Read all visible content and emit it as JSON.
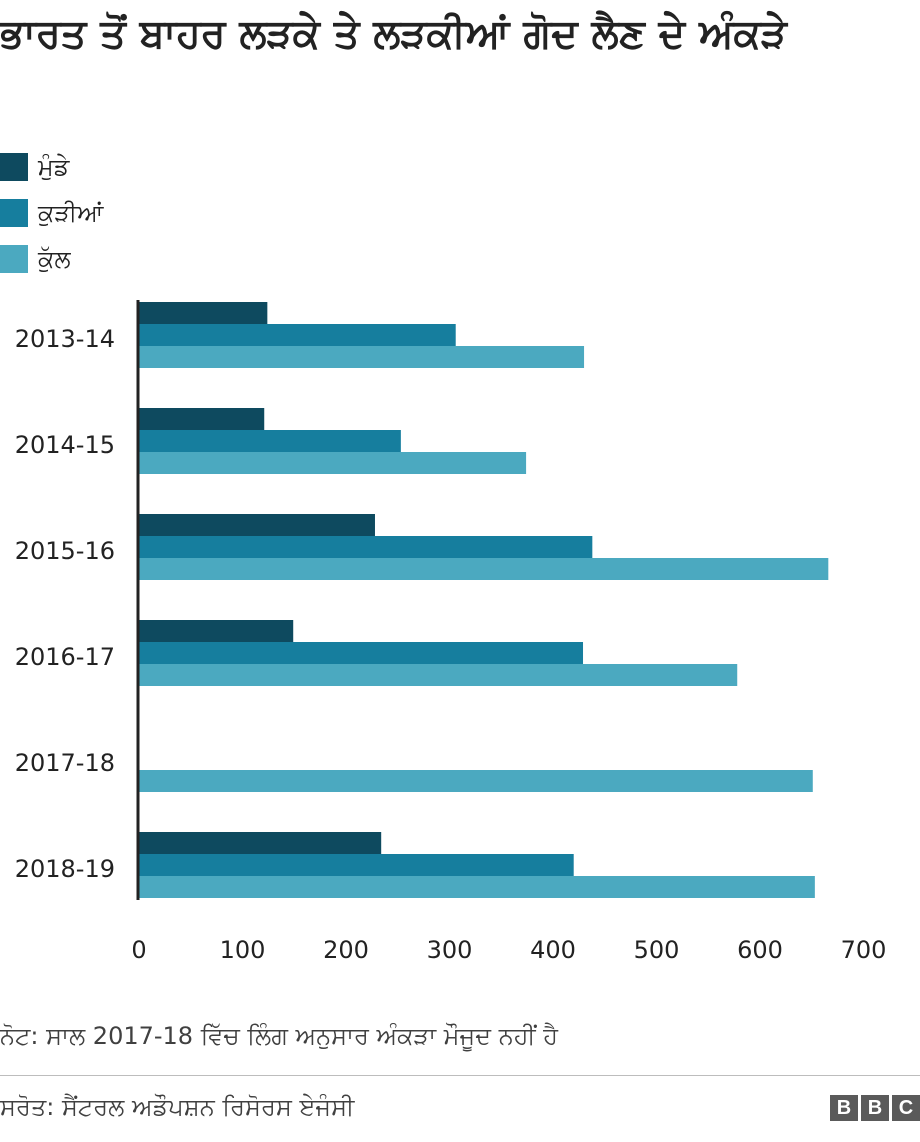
{
  "title": "ਭਾਰਤ ਤੋਂ ਬਾਹਰ ਲੜਕੇ ਤੇ ਲੜਕੀਆਂ ਗੋਦ ਲੈਣ ਦੇ ਅੰਕੜੇ",
  "note": "ਨੋਟ: ਸਾਲ 2017-18 ਵਿੱਚ ਲਿੰਗ ਅਨੁਸਾਰ ਅੰਕੜਾ ਮੌਜੂਦ ਨਹੀਂ ਹੈ",
  "source": "ਸਰੋਤ: ਸੈਂਟਰਲ ਅਡੌਪਸ਼ਨ ਰਿਸੋਰਸ ਏਜੰਸੀ",
  "logo": {
    "letters": [
      "B",
      "B",
      "C"
    ]
  },
  "colors": {
    "boys": "#0e4a5f",
    "girls": "#167e9e",
    "total": "#4ba9c0",
    "axis": "#222222",
    "text": "#222222"
  },
  "chart_data": {
    "type": "bar",
    "orientation": "horizontal",
    "title": "ਭਾਰਤ ਤੋਂ ਬਾਹਰ ਲੜਕੇ ਤੇ ਲੜਕੀਆਂ ਗੋਦ ਲੈਣ ਦੇ ਅੰਕੜੇ",
    "categories": [
      "2013-14",
      "2014-15",
      "2015-16",
      "2016-17",
      "2017-18",
      "2018-19"
    ],
    "series": [
      {
        "name": "ਮੁੰਡੇ",
        "color": "#0e4a5f",
        "values": [
          124,
          121,
          228,
          149,
          null,
          234
        ]
      },
      {
        "name": "ਕੁੜੀਆਂ",
        "color": "#167e9e",
        "values": [
          306,
          253,
          438,
          429,
          null,
          420
        ]
      },
      {
        "name": "ਕੁੱਲ",
        "color": "#4ba9c0",
        "values": [
          430,
          374,
          666,
          578,
          651,
          653
        ]
      }
    ],
    "xlim": [
      0,
      700
    ],
    "xticks": [
      0,
      100,
      200,
      300,
      400,
      500,
      600,
      700
    ],
    "xlabel": "",
    "ylabel": "",
    "legend": "top-left",
    "grid": false
  }
}
